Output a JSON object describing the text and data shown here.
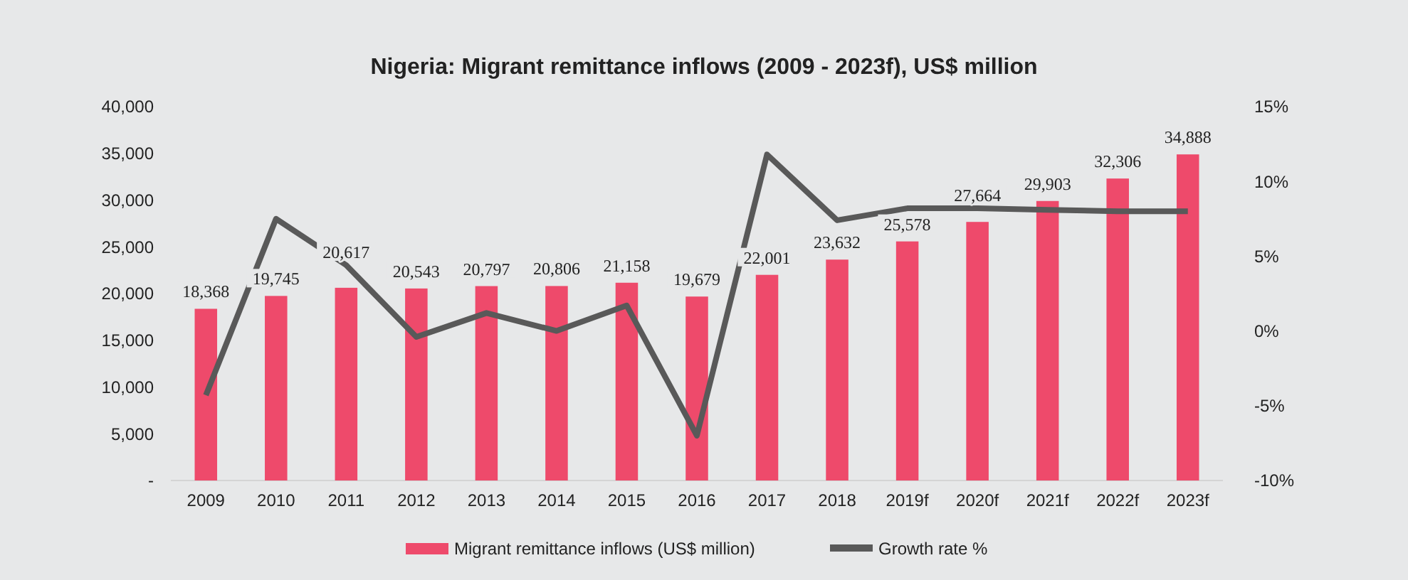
{
  "chart_data": {
    "type": "bar",
    "title": "Nigeria: Migrant remittance inflows (2009 - 2023f), US$ million",
    "categories": [
      "2009",
      "2010",
      "2011",
      "2012",
      "2013",
      "2014",
      "2015",
      "2016",
      "2017",
      "2018",
      "2019f",
      "2020f",
      "2021f",
      "2022f",
      "2023f"
    ],
    "series": [
      {
        "name": "Migrant remittance inflows (US$ million)",
        "color": "#ee4a6b",
        "values": [
          18368,
          19745,
          20617,
          20543,
          20797,
          20806,
          21158,
          19679,
          22001,
          23632,
          25578,
          27664,
          29903,
          32306,
          34888
        ],
        "value_labels": [
          "18,368",
          "19,745",
          "20,617",
          "20,543",
          "20,797",
          "20,806",
          "21,158",
          "19,679",
          "22,001",
          "23,632",
          "25,578",
          "27,664",
          "29,903",
          "32,306",
          "34,888"
        ]
      },
      {
        "name": "Growth rate %",
        "type": "line",
        "axis": "y2",
        "color": "#595959",
        "values": [
          -4.3,
          7.5,
          4.4,
          -0.4,
          1.2,
          0.0,
          1.7,
          -7.0,
          11.8,
          7.4,
          8.2,
          8.2,
          8.1,
          8.0,
          8.0
        ]
      }
    ],
    "ylim": [
      0,
      40000
    ],
    "yticks": [
      {
        "value": 0,
        "label": "-"
      },
      {
        "value": 5000,
        "label": "5,000"
      },
      {
        "value": 10000,
        "label": "10,000"
      },
      {
        "value": 15000,
        "label": "15,000"
      },
      {
        "value": 20000,
        "label": "20,000"
      },
      {
        "value": 25000,
        "label": "25,000"
      },
      {
        "value": 30000,
        "label": "30,000"
      },
      {
        "value": 35000,
        "label": "35,000"
      },
      {
        "value": 40000,
        "label": "40,000"
      }
    ],
    "y2lim": [
      -10,
      15
    ],
    "y2ticks": [
      {
        "value": -10,
        "label": "-10%"
      },
      {
        "value": -5,
        "label": "-5%"
      },
      {
        "value": 0,
        "label": "0%"
      },
      {
        "value": 5,
        "label": "5%"
      },
      {
        "value": 10,
        "label": "10%"
      },
      {
        "value": 15,
        "label": "15%"
      }
    ],
    "grid": false,
    "legend": "bottom",
    "marker": "none"
  }
}
